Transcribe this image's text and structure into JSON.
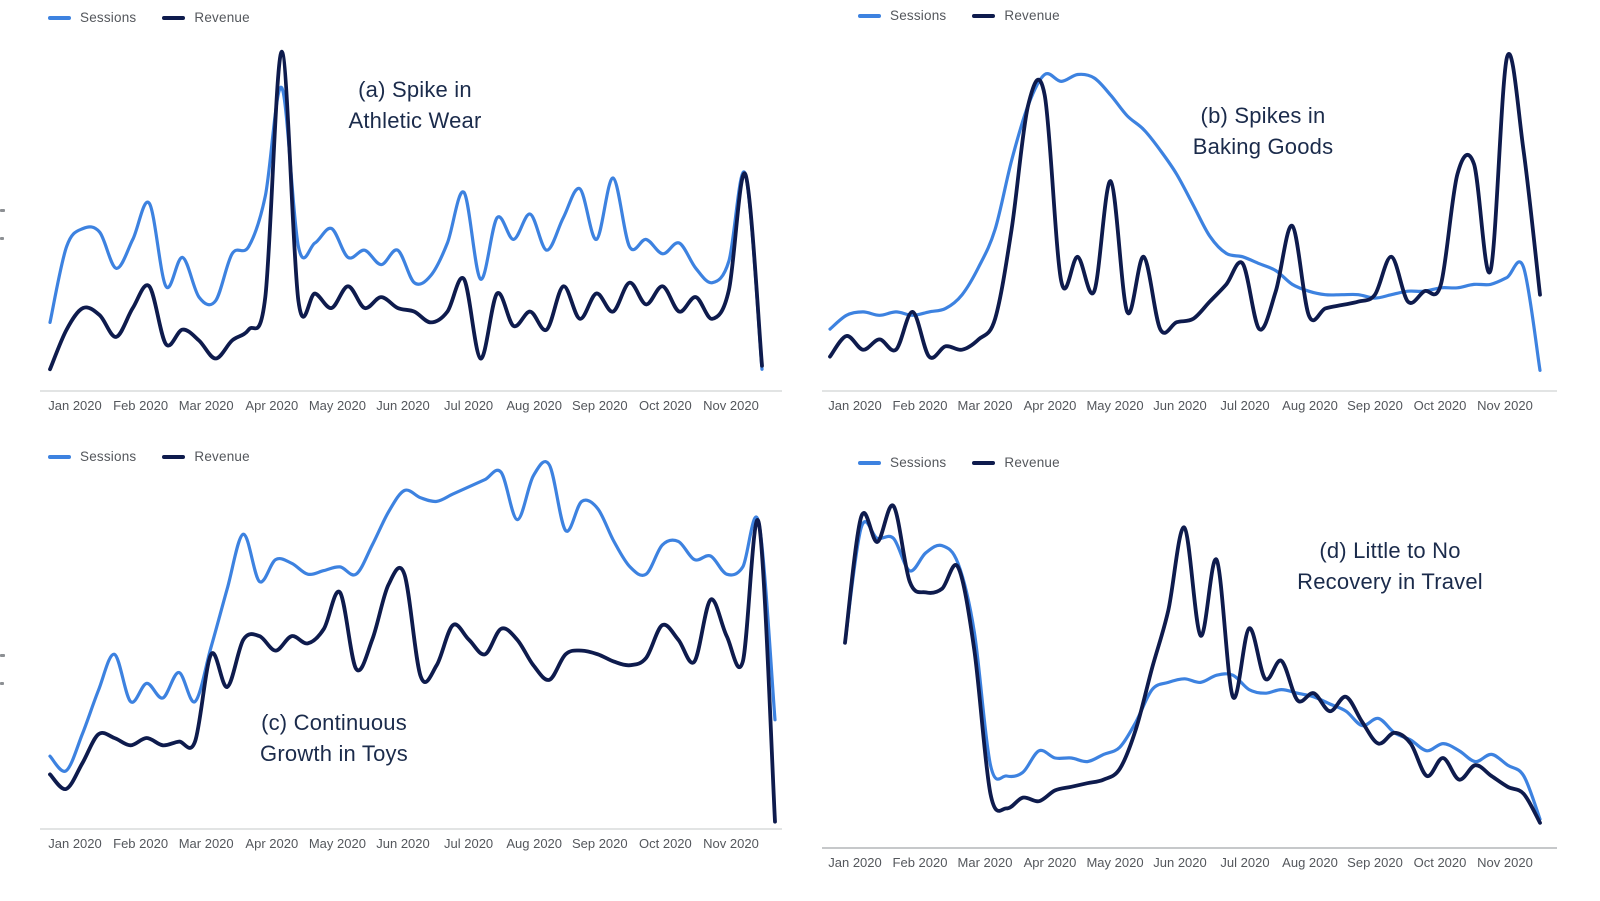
{
  "colors": {
    "background": "#ffffff",
    "sessions_line": "#3d82e0",
    "revenue_line": "#0e1b4d",
    "axis_line": "#c6c8ca",
    "tick_label": "#54575c",
    "legend_label": "#54575c",
    "annotation_text": "#1b2b4b"
  },
  "chart_data": [
    {
      "id": "a",
      "type": "line",
      "title": "(a) Spike in Athletic Wear",
      "annotation_lines": [
        "(a) Spike in",
        "Athletic Wear"
      ],
      "categories": [
        "Jan 2020",
        "Feb 2020",
        "Mar 2020",
        "Apr 2020",
        "May 2020",
        "Jun 2020",
        "Jul 2020",
        "Aug 2020",
        "Sep 2020",
        "Oct 2020",
        "Nov 2020"
      ],
      "xlabel": "",
      "ylabel": "",
      "ylim": [
        0,
        100
      ],
      "y_units": "relative (y axis unlabeled in figure)",
      "grid": false,
      "legend_position": "top-left",
      "series": [
        {
          "name": "Sessions",
          "color": "#3d82e0",
          "values": [
            19,
            40,
            45,
            44,
            34,
            42,
            52,
            29,
            37,
            26,
            25,
            38,
            40,
            54,
            84,
            40,
            41,
            45,
            37,
            39,
            35,
            39,
            30,
            32,
            41,
            55,
            31,
            48,
            42,
            49,
            39,
            48,
            56,
            42,
            59,
            40,
            42,
            38,
            41,
            34,
            30,
            36,
            60,
            6
          ]
        },
        {
          "name": "Revenue",
          "color": "#0e1b4d",
          "values": [
            6,
            17,
            23,
            21,
            15,
            23,
            29,
            13,
            17,
            14,
            9,
            14,
            17,
            26,
            94,
            25,
            27,
            23,
            29,
            23,
            26,
            23,
            22,
            19,
            22,
            31,
            9,
            27,
            18,
            22,
            17,
            29,
            20,
            27,
            22,
            30,
            24,
            29,
            22,
            26,
            20,
            28,
            60,
            7
          ]
        }
      ]
    },
    {
      "id": "b",
      "type": "line",
      "title": "(b) Spikes in Baking Goods",
      "annotation_lines": [
        "(b) Spikes in",
        "Baking Goods"
      ],
      "categories": [
        "Jan 2020",
        "Feb 2020",
        "Mar 2020",
        "Apr 2020",
        "May 2020",
        "Jun 2020",
        "Jul 2020",
        "Aug 2020",
        "Sep 2020",
        "Oct 2020",
        "Nov 2020"
      ],
      "xlabel": "",
      "ylabel": "",
      "ylim": [
        0,
        100
      ],
      "y_units": "relative (y axis unlabeled in figure)",
      "grid": false,
      "legend_position": "top-left",
      "series": [
        {
          "name": "Sessions",
          "color": "#3d82e0",
          "values": [
            18,
            22,
            23,
            22,
            23,
            22,
            23,
            24,
            28,
            36,
            47,
            67,
            83,
            92,
            90,
            92,
            91,
            86,
            80,
            76,
            70,
            63,
            54,
            45,
            40,
            39,
            37,
            35,
            31,
            29,
            28,
            28,
            28,
            27,
            28,
            29,
            29,
            30,
            30,
            31,
            31,
            33,
            36,
            6
          ]
        },
        {
          "name": "Revenue",
          "color": "#0e1b4d",
          "values": [
            10,
            16,
            12,
            15,
            12,
            23,
            10,
            13,
            12,
            15,
            21,
            47,
            83,
            86,
            32,
            39,
            29,
            61,
            23,
            39,
            18,
            20,
            21,
            26,
            31,
            37,
            18,
            29,
            48,
            22,
            24,
            25,
            26,
            28,
            39,
            26,
            29,
            31,
            63,
            66,
            35,
            97,
            70,
            28
          ]
        }
      ]
    },
    {
      "id": "c",
      "type": "line",
      "title": "(c) Continuous Growth in Toys",
      "annotation_lines": [
        "(c) Continuous",
        "Growth in Toys"
      ],
      "categories": [
        "Jan 2020",
        "Feb 2020",
        "Mar 2020",
        "Apr 2020",
        "May 2020",
        "Jun 2020",
        "Jul 2020",
        "Aug 2020",
        "Sep 2020",
        "Oct 2020",
        "Nov 2020"
      ],
      "xlabel": "",
      "ylabel": "",
      "ylim": [
        0,
        100
      ],
      "y_units": "relative (y axis unlabeled in figure)",
      "grid": false,
      "legend_position": "top-left",
      "series": [
        {
          "name": "Sessions",
          "color": "#3d82e0",
          "values": [
            20,
            16,
            26,
            38,
            48,
            35,
            40,
            36,
            43,
            35,
            50,
            66,
            81,
            68,
            74,
            73,
            70,
            71,
            72,
            70,
            78,
            87,
            93,
            91,
            90,
            92,
            94,
            96,
            98,
            85,
            97,
            100,
            82,
            90,
            88,
            79,
            72,
            70,
            78,
            79,
            74,
            75,
            70,
            72,
            84,
            30
          ]
        },
        {
          "name": "Revenue",
          "color": "#0e1b4d",
          "values": [
            15,
            11,
            18,
            26,
            25,
            23,
            25,
            23,
            24,
            24,
            48,
            39,
            52,
            53,
            49,
            53,
            51,
            55,
            65,
            44,
            52,
            67,
            70,
            42,
            45,
            56,
            52,
            48,
            55,
            52,
            45,
            41,
            48,
            49,
            48,
            46,
            45,
            47,
            56,
            52,
            46,
            63,
            53,
            46,
            84,
            2
          ]
        }
      ]
    },
    {
      "id": "d",
      "type": "line",
      "title": "(d) Little to No Recovery in Travel",
      "annotation_lines": [
        "(d) Little to No",
        "Recovery in Travel"
      ],
      "categories": [
        "Jan 2020",
        "Feb 2020",
        "Mar 2020",
        "Apr 2020",
        "May 2020",
        "Jun 2020",
        "Jul 2020",
        "Aug 2020",
        "Sep 2020",
        "Oct 2020",
        "Nov 2020"
      ],
      "xlabel": "",
      "ylabel": "",
      "ylim": [
        0,
        100
      ],
      "y_units": "relative (y axis unlabeled in figure)",
      "grid": false,
      "legend_position": "top-left",
      "series": [
        {
          "name": "Sessions",
          "color": "#3d82e0",
          "values": [
            57,
            89,
            86,
            86,
            77,
            82,
            84,
            79,
            60,
            23,
            20,
            21,
            27,
            25,
            25,
            24,
            26,
            28,
            35,
            44,
            46,
            47,
            46,
            48,
            48,
            44,
            43,
            44,
            43,
            42,
            40,
            38,
            34,
            36,
            32,
            30,
            27,
            29,
            27,
            24,
            26,
            23,
            20,
            8
          ]
        },
        {
          "name": "Revenue",
          "color": "#0e1b4d",
          "values": [
            57,
            92,
            85,
            95,
            74,
            71,
            72,
            78,
            55,
            15,
            11,
            14,
            13,
            16,
            17,
            18,
            19,
            22,
            33,
            50,
            66,
            89,
            59,
            80,
            42,
            61,
            47,
            52,
            41,
            43,
            38,
            42,
            35,
            29,
            32,
            29,
            20,
            25,
            19,
            23,
            20,
            17,
            15,
            7
          ]
        }
      ]
    }
  ]
}
